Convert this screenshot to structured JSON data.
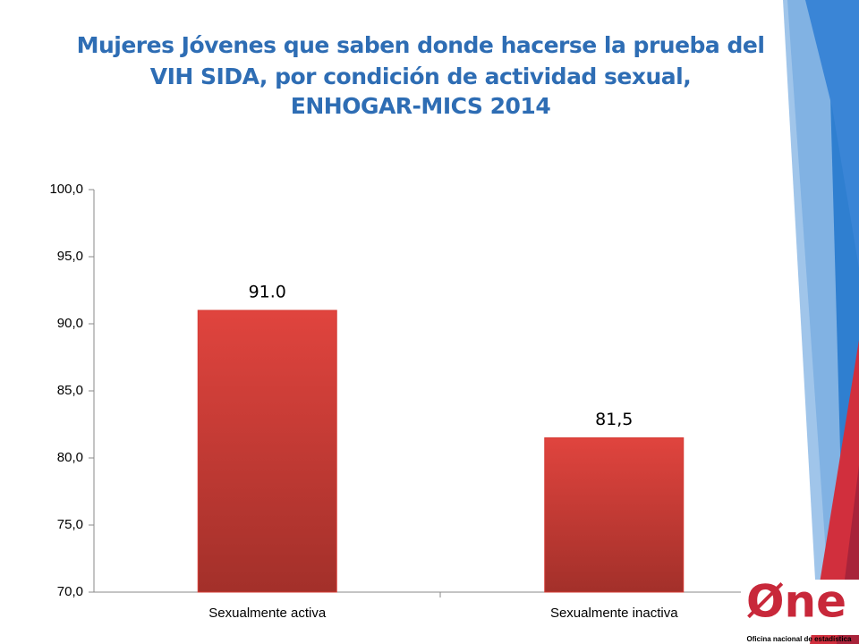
{
  "chart_data": {
    "type": "bar",
    "title": [
      "Mujeres Jóvenes que saben donde hacerse la prueba del",
      "VIH SIDA, por condición de actividad sexual,",
      "ENHOGAR-MICS 2014"
    ],
    "categories": [
      "Sexualmente activa",
      "Sexualmente inactiva"
    ],
    "values": [
      91.0,
      81.5
    ],
    "value_labels": [
      "91.0",
      "81,5"
    ],
    "color": "#d63c36",
    "ylim": [
      70,
      100
    ],
    "yticks": [
      {
        "value": 70,
        "label": "70,0"
      },
      {
        "value": 75,
        "label": "75,0"
      },
      {
        "value": 80,
        "label": "80,0"
      },
      {
        "value": 85,
        "label": "85,0"
      },
      {
        "value": 90,
        "label": "90,0"
      },
      {
        "value": 95,
        "label": "95,0"
      },
      {
        "value": 100,
        "label": "100,0"
      }
    ],
    "grid": false
  },
  "logo": {
    "text": "Øne",
    "caption": "Oficina nacional de estadística"
  }
}
